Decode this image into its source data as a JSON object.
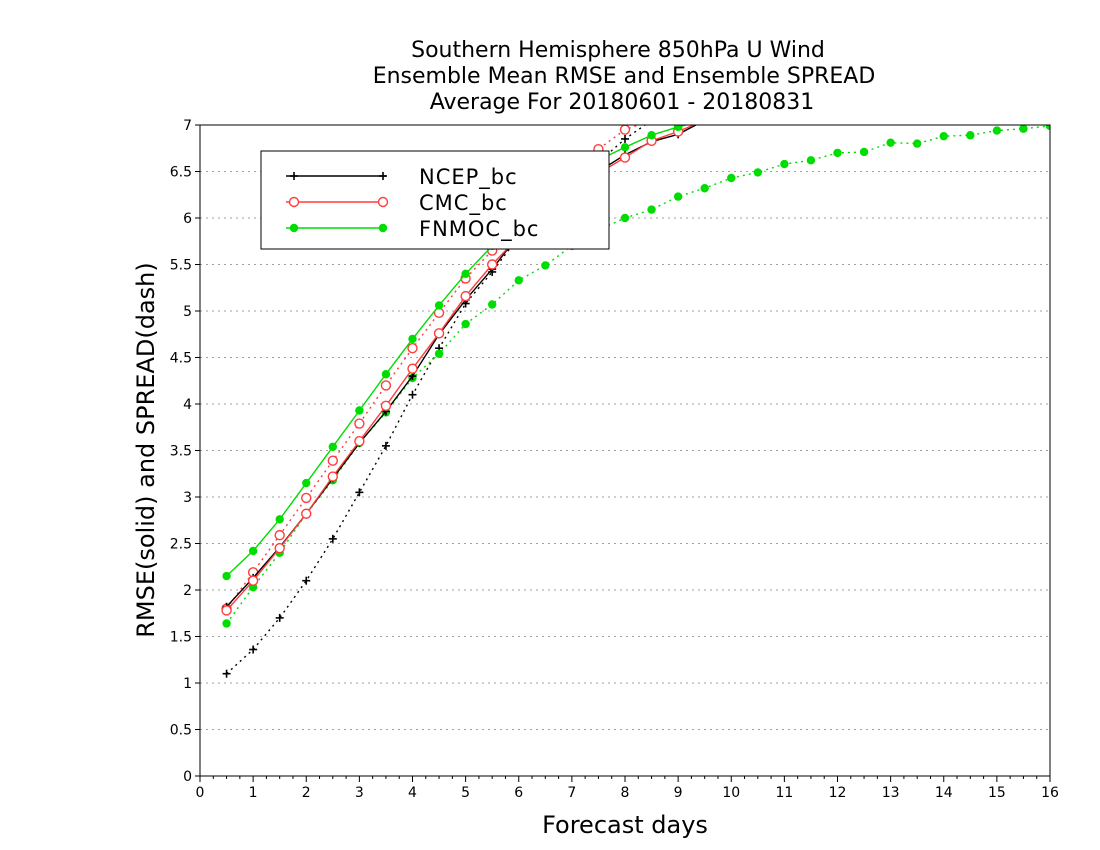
{
  "chart_data": {
    "type": "line",
    "title": [
      "Southern Hemisphere 850hPa U Wind",
      "Ensemble Mean RMSE and Ensemble SPREAD",
      "Average For 20180601 - 20180831"
    ],
    "xlabel": "Forecast days",
    "ylabel": "RMSE(solid) and SPREAD(dash)",
    "xlim": [
      0,
      16
    ],
    "ylim": [
      0,
      7
    ],
    "xticks": [
      0,
      1,
      2,
      3,
      4,
      5,
      6,
      7,
      8,
      9,
      10,
      11,
      12,
      13,
      14,
      15,
      16
    ],
    "xtick_labels": [
      "0",
      "1",
      "2",
      "3",
      "4",
      "5",
      "6",
      "7",
      "8",
      "9",
      "10",
      "11",
      "12",
      "13",
      "14",
      "15",
      "16"
    ],
    "yticks": [
      0,
      0.5,
      1,
      1.5,
      2,
      2.5,
      3,
      3.5,
      4,
      4.5,
      5,
      5.5,
      6,
      6.5,
      7
    ],
    "ytick_labels": [
      "0",
      "0.5",
      "1",
      "1.5",
      "2",
      "2.5",
      "3",
      "3.5",
      "4",
      "4.5",
      "5",
      "5.5",
      "6",
      "6.5",
      "7"
    ],
    "grid": true,
    "legend_position": "top-left",
    "series": [
      {
        "name": "NCEP_bc",
        "color": "#000000",
        "marker": "plus",
        "rmse": {
          "x": [
            0.5,
            1,
            1.5,
            2,
            2.5,
            3,
            3.5,
            4,
            4.5,
            5,
            5.5,
            6,
            6.5,
            7,
            7.5,
            8,
            8.5,
            9,
            9.5
          ],
          "y": [
            1.82,
            2.13,
            2.46,
            2.82,
            3.2,
            3.58,
            3.92,
            4.3,
            4.75,
            5.12,
            5.45,
            5.82,
            6.05,
            6.3,
            6.5,
            6.68,
            6.82,
            6.9,
            7.05
          ]
        },
        "spread": {
          "x": [
            0.5,
            1,
            1.5,
            2,
            2.5,
            3,
            3.5,
            4,
            4.5,
            5,
            5.5,
            6,
            6.5,
            7,
            7.5,
            8,
            8.5
          ],
          "y": [
            1.1,
            1.36,
            1.7,
            2.1,
            2.55,
            3.05,
            3.55,
            4.1,
            4.6,
            5.08,
            5.42,
            5.8,
            6.1,
            6.35,
            6.6,
            6.85,
            7.05
          ]
        }
      },
      {
        "name": "CMC_bc",
        "color": "#ff3c3c",
        "marker": "open-circle",
        "rmse": {
          "x": [
            0.5,
            1,
            1.5,
            2,
            2.5,
            3,
            3.5,
            4,
            4.5,
            5,
            5.5,
            6,
            6.5,
            7,
            7.5,
            8,
            8.5,
            9,
            9.5
          ],
          "y": [
            1.78,
            2.1,
            2.45,
            2.82,
            3.22,
            3.6,
            3.98,
            4.38,
            4.76,
            5.16,
            5.5,
            5.8,
            6.08,
            6.3,
            6.48,
            6.65,
            6.83,
            6.93,
            7.05
          ]
        },
        "spread": {
          "x": [
            0.5,
            1,
            1.5,
            2,
            2.5,
            3,
            3.5,
            4,
            4.5,
            5,
            5.5,
            6,
            6.5,
            7,
            7.5,
            8,
            8.5
          ],
          "y": [
            1.8,
            2.19,
            2.59,
            2.99,
            3.39,
            3.79,
            4.2,
            4.6,
            4.98,
            5.35,
            5.65,
            5.95,
            6.2,
            6.48,
            6.74,
            6.95,
            7.05
          ]
        }
      },
      {
        "name": "FNMOC_bc",
        "color": "#00dd00",
        "marker": "filled-circle",
        "rmse": {
          "x": [
            0.5,
            1,
            1.5,
            2,
            2.5,
            3,
            3.5,
            4,
            4.5,
            5,
            5.5,
            6,
            6.5,
            7,
            7.5,
            8,
            8.5,
            9,
            9.5
          ],
          "y": [
            2.15,
            2.42,
            2.76,
            3.15,
            3.54,
            3.93,
            4.32,
            4.7,
            5.06,
            5.4,
            5.7,
            5.98,
            6.23,
            6.45,
            6.62,
            6.76,
            6.89,
            6.98,
            7.05
          ]
        },
        "spread": {
          "x": [
            0.5,
            1,
            1.5,
            2,
            2.5,
            3,
            3.5,
            4,
            4.5,
            5,
            5.5,
            6,
            6.5,
            7,
            7.5,
            8,
            8.5,
            9,
            9.5,
            10,
            10.5,
            11,
            11.5,
            12,
            12.5,
            13,
            13.5,
            14,
            14.5,
            15,
            15.5,
            16
          ],
          "y": [
            1.64,
            2.03,
            2.4,
            2.82,
            3.18,
            3.58,
            3.91,
            4.28,
            4.54,
            4.86,
            5.07,
            5.33,
            5.49,
            5.7,
            5.87,
            6.0,
            6.09,
            6.23,
            6.32,
            6.43,
            6.49,
            6.58,
            6.62,
            6.7,
            6.71,
            6.81,
            6.8,
            6.88,
            6.89,
            6.94,
            6.96,
            6.99
          ]
        }
      }
    ]
  }
}
